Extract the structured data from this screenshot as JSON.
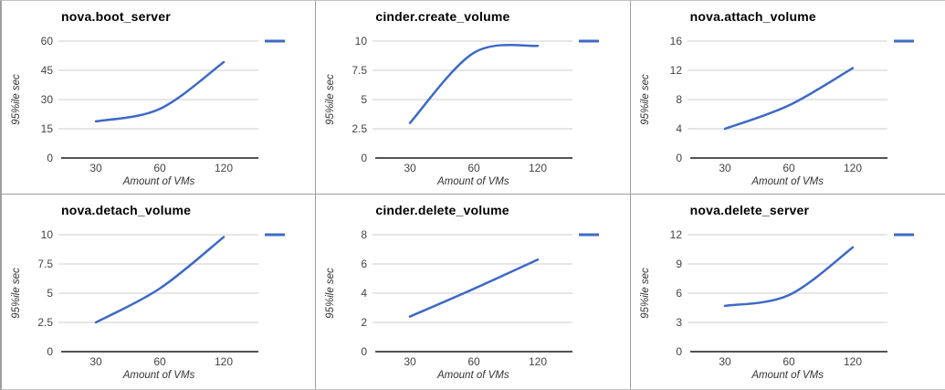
{
  "page": {
    "background": "#ffffff",
    "border_color": "#9e9e9e"
  },
  "chart_style": {
    "line_color": "#3d69c8",
    "gridline_color": "#cccccc",
    "axis_color": "#1a1a1a",
    "tick_color": "#444444",
    "title_color": "#000000",
    "axis_label_color": "#333333"
  },
  "chart_data": [
    {
      "type": "line",
      "title": "nova.boot_server",
      "ylabel": "95%ile sec",
      "xlabel": "Amount of VMs",
      "categories": [
        "30",
        "60",
        "120"
      ],
      "values": [
        18.8,
        25.2,
        49.2
      ],
      "y_ticks": [
        0,
        15,
        30,
        45,
        60
      ],
      "ylim": [
        0,
        60
      ],
      "x_axis_type": "categorical",
      "grid": "horizontal",
      "curve": "smooth",
      "legend_position": "right"
    },
    {
      "type": "line",
      "title": "cinder.create_volume",
      "ylabel": "95%ile sec",
      "xlabel": "Amount of VMs",
      "categories": [
        "30",
        "60",
        "120"
      ],
      "values": [
        3.0,
        9.0,
        9.6
      ],
      "y_ticks": [
        0,
        2.5,
        5,
        7.5,
        10
      ],
      "ylim": [
        0,
        10
      ],
      "x_axis_type": "categorical",
      "grid": "horizontal",
      "curve": "smooth",
      "legend_position": "right"
    },
    {
      "type": "line",
      "title": "nova.attach_volume",
      "ylabel": "95%ile sec",
      "xlabel": "Amount of VMs",
      "categories": [
        "30",
        "60",
        "120"
      ],
      "values": [
        4.0,
        7.2,
        12.3
      ],
      "y_ticks": [
        0,
        4,
        8,
        12,
        16
      ],
      "ylim": [
        0,
        16
      ],
      "x_axis_type": "categorical",
      "grid": "horizontal",
      "curve": "smooth",
      "legend_position": "right"
    },
    {
      "type": "line",
      "title": "nova.detach_volume",
      "ylabel": "95%ile sec",
      "xlabel": "Amount of VMs",
      "categories": [
        "30",
        "60",
        "120"
      ],
      "values": [
        2.5,
        5.4,
        9.8
      ],
      "y_ticks": [
        0,
        2.5,
        5,
        7.5,
        10
      ],
      "ylim": [
        0,
        10
      ],
      "x_axis_type": "categorical",
      "grid": "horizontal",
      "curve": "smooth",
      "legend_position": "right"
    },
    {
      "type": "line",
      "title": "cinder.delete_volume",
      "ylabel": "95%ile sec",
      "xlabel": "Amount of VMs",
      "categories": [
        "30",
        "60",
        "120"
      ],
      "values": [
        2.4,
        4.3,
        6.3
      ],
      "y_ticks": [
        0,
        2,
        4,
        6,
        8
      ],
      "ylim": [
        0,
        8
      ],
      "x_axis_type": "categorical",
      "grid": "horizontal",
      "curve": "smooth",
      "legend_position": "right"
    },
    {
      "type": "line",
      "title": "nova.delete_server",
      "ylabel": "95%ile sec",
      "xlabel": "Amount of VMs",
      "categories": [
        "30",
        "60",
        "120"
      ],
      "values": [
        4.7,
        5.8,
        10.7
      ],
      "y_ticks": [
        0,
        3,
        6,
        9,
        12
      ],
      "ylim": [
        0,
        12
      ],
      "x_axis_type": "categorical",
      "grid": "horizontal",
      "curve": "smooth",
      "legend_position": "right"
    }
  ]
}
